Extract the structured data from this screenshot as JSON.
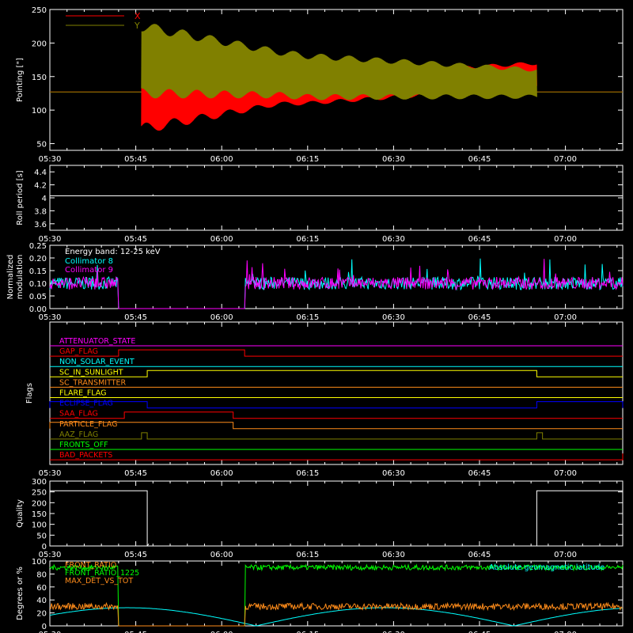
{
  "time_ticks": [
    "05:30",
    "05:45",
    "06:00",
    "06:15",
    "06:30",
    "06:45",
    "07:00"
  ],
  "colors": {
    "x": "#ff0000",
    "y": "#808000",
    "white": "#ffffff",
    "cyan": "#00ffff",
    "magenta": "#ff00ff",
    "green": "#00ff00",
    "orange": "#ff8c1a",
    "blue": "#0000ff",
    "yellow": "#ffff00"
  },
  "chart_data": [
    {
      "type": "line",
      "id": "pointing",
      "ylabel": "Pointing [\"]",
      "ylim": [
        40,
        250
      ],
      "yticks": [
        50,
        100,
        150,
        200,
        250
      ],
      "xlim": [
        "05:30",
        "07:10"
      ],
      "series": [
        {
          "name": "X",
          "color": "#ff0000",
          "flat_value": 127,
          "oscillation_start": "05:46",
          "oscillation_end": "06:55",
          "center": [
            [
              "05:46",
              127
            ],
            [
              "06:15",
              130
            ],
            [
              "06:55",
              152
            ]
          ],
          "amplitude": [
            [
              "05:46",
              55
            ],
            [
              "06:10",
              20
            ],
            [
              "06:55",
              18
            ]
          ]
        },
        {
          "name": "Y",
          "color": "#808000",
          "flat_value": 127,
          "oscillation_start": "05:46",
          "oscillation_end": "06:55",
          "center": [
            [
              "05:46",
              175
            ],
            [
              "06:15",
              150
            ],
            [
              "06:55",
              140
            ]
          ],
          "amplitude": [
            [
              "05:46",
              50
            ],
            [
              "06:10",
              32
            ],
            [
              "06:55",
              20
            ]
          ]
        }
      ]
    },
    {
      "type": "line",
      "id": "roll",
      "ylabel": "Roll period [s]",
      "ylim": [
        3.5,
        4.5
      ],
      "yticks": [
        3.6,
        3.8,
        4.0,
        4.2,
        4.4
      ],
      "series": [
        {
          "name": "",
          "color": "#ffffff",
          "value": 4.03
        }
      ]
    },
    {
      "type": "line",
      "id": "modulation",
      "ylabel": "Normalized modulation",
      "ylim": [
        0,
        0.25
      ],
      "yticks": [
        "0.00",
        "0.05",
        "0.10",
        "0.15",
        "0.20",
        "0.25"
      ],
      "annotation": "Energy band: 12-25 keV",
      "gap": [
        "05:42",
        "06:04"
      ],
      "series": [
        {
          "name": "Collimator 8",
          "color": "#00ffff",
          "mean": 0.1
        },
        {
          "name": "Collimator 9",
          "color": "#ff00ff",
          "mean": 0.1
        }
      ]
    },
    {
      "type": "line",
      "id": "flags",
      "ylabel": "Flags",
      "series": [
        {
          "name": "ATTENUATOR_STATE",
          "color": "#ff00ff",
          "high": []
        },
        {
          "name": "GAP_FLAG",
          "color": "#ff0000",
          "high": [
            [
              "05:42",
              "06:04"
            ]
          ]
        },
        {
          "name": "NON_SOLAR_EVENT",
          "color": "#00ffff",
          "high": []
        },
        {
          "name": "SC_IN_SUNLIGHT",
          "color": "#ffff00",
          "high": [
            [
              "05:47",
              "06:55"
            ]
          ]
        },
        {
          "name": "SC_TRANSMITTER",
          "color": "#ff8c1a",
          "high": []
        },
        {
          "name": "FLARE_FLAG",
          "color": "#ffff00",
          "high": []
        },
        {
          "name": "ECLIPSE_FLAG",
          "color": "#0000ff",
          "high": [
            [
              "05:30",
              "05:47"
            ],
            [
              "06:55",
              "07:10"
            ]
          ]
        },
        {
          "name": "SAA_FLAG",
          "color": "#ff0000",
          "high": [
            [
              "05:43",
              "06:02"
            ]
          ]
        },
        {
          "name": "PARTICLE_FLAG",
          "color": "#ff8c1a",
          "high": [
            [
              "05:30",
              "06:02"
            ]
          ]
        },
        {
          "name": "AAZ_FLAG",
          "color": "#808000",
          "high": [
            [
              "05:46",
              "05:47"
            ],
            [
              "06:55",
              "06:56"
            ]
          ]
        },
        {
          "name": "FRONTS_OFF",
          "color": "#00ff00",
          "high": []
        },
        {
          "name": "BAD_PACKETS",
          "color": "#ff0000",
          "high": [
            [
              "07:10",
              "07:10"
            ]
          ]
        }
      ]
    },
    {
      "type": "area",
      "id": "quality",
      "ylabel": "Quality",
      "ylim": [
        0,
        300
      ],
      "yticks": [
        0,
        50,
        100,
        150,
        200,
        250,
        300
      ],
      "series": [
        {
          "name": "",
          "color": "#ffffff",
          "segments": [
            [
              "05:30",
              "05:47",
              255
            ],
            [
              "06:55",
              "07:10",
              255
            ]
          ]
        }
      ]
    },
    {
      "type": "line",
      "id": "ratios",
      "ylabel": "Degrees or %",
      "ylim": [
        0,
        100
      ],
      "yticks": [
        0,
        20,
        40,
        60,
        80,
        100
      ],
      "gap": [
        "05:42",
        "06:04"
      ],
      "annotation": "Absolute geomagnetic latitude",
      "series": [
        {
          "name": "FRONT_RATIO",
          "color": "#ff8c1a",
          "mean": 30
        },
        {
          "name": "FRONT_RATIO_1225",
          "color": "#00ff00",
          "mean": 90
        },
        {
          "name": "MAX_DET_VS_TOT",
          "color": "#ff8c1a",
          "mean": 30
        },
        {
          "name": "",
          "color": "#00ffff",
          "period_min": 45,
          "amplitude": 28
        }
      ]
    }
  ]
}
